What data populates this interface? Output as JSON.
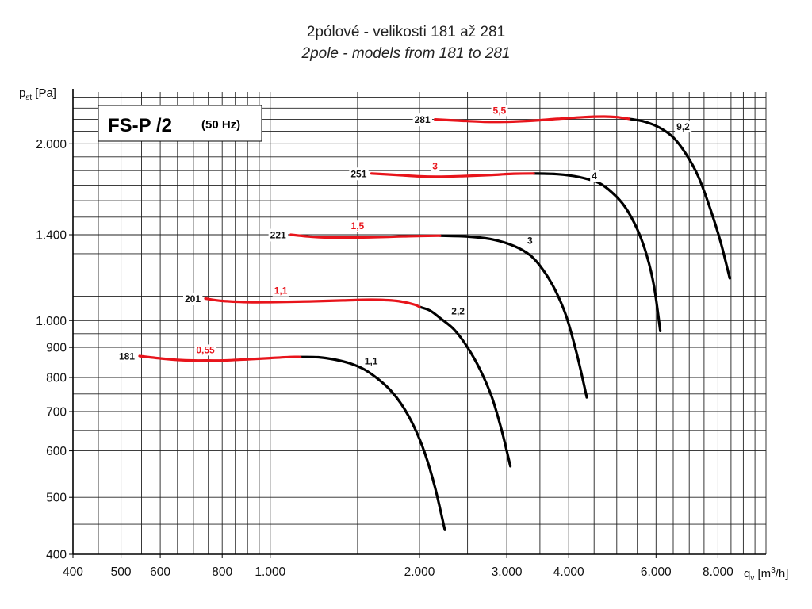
{
  "title_line1": "2pólové - velikosti 181 až 281",
  "title_line2": "2pole - models from 181 to 281",
  "box": {
    "main": "FS-P /2",
    "sub": "(50 Hz)"
  },
  "colors": {
    "red": "#e8141b",
    "black": "#000000",
    "grid": "#222222"
  },
  "chart_data": {
    "type": "line",
    "x_scale": "log",
    "y_scale": "log",
    "xlabel": "qv [m3/h]",
    "ylabel": "pst [Pa]",
    "xlim": [
      400,
      10000
    ],
    "ylim": [
      400,
      2450
    ],
    "x_ticks": [
      {
        "v": 400,
        "label": "400"
      },
      {
        "v": 500,
        "label": "500"
      },
      {
        "v": 600,
        "label": "600"
      },
      {
        "v": 800,
        "label": "800"
      },
      {
        "v": 1000,
        "label": "1.000"
      },
      {
        "v": 2000,
        "label": "2.000"
      },
      {
        "v": 3000,
        "label": "3.000"
      },
      {
        "v": 4000,
        "label": "4.000"
      },
      {
        "v": 6000,
        "label": "6.000"
      },
      {
        "v": 8000,
        "label": "8.000"
      }
    ],
    "y_ticks": [
      {
        "v": 400,
        "label": "400"
      },
      {
        "v": 500,
        "label": "500"
      },
      {
        "v": 600,
        "label": "600"
      },
      {
        "v": 700,
        "label": "700"
      },
      {
        "v": 800,
        "label": "800"
      },
      {
        "v": 900,
        "label": "900"
      },
      {
        "v": 1000,
        "label": "1.000"
      },
      {
        "v": 1400,
        "label": "1.400"
      },
      {
        "v": 2000,
        "label": "2.000"
      }
    ],
    "x_gridlines": [
      450,
      500,
      550,
      600,
      650,
      700,
      750,
      800,
      850,
      900,
      950,
      1000,
      1500,
      2000,
      2500,
      3000,
      3500,
      4000,
      4500,
      5000,
      5500,
      6000,
      6500,
      7000,
      7500,
      8000,
      8500,
      9000,
      9500,
      10000
    ],
    "y_gridlines": [
      400,
      450,
      500,
      550,
      600,
      650,
      700,
      750,
      800,
      850,
      900,
      950,
      1000,
      1100,
      1200,
      1300,
      1400,
      1500,
      1600,
      1700,
      1800,
      1900,
      2000,
      2100,
      2200,
      2300,
      2400
    ],
    "series": [
      {
        "name": "181",
        "power": "0,55",
        "power_at": [
          740,
          865
        ],
        "power_label_at": [
          740,
          880
        ],
        "red": [
          [
            545,
            870
          ],
          [
            600,
            862
          ],
          [
            650,
            857
          ],
          [
            700,
            855
          ],
          [
            750,
            855
          ],
          [
            800,
            855
          ],
          [
            900,
            859
          ],
          [
            1000,
            863
          ],
          [
            1100,
            867
          ],
          [
            1150,
            867
          ]
        ],
        "black": [
          [
            1150,
            867
          ],
          [
            1250,
            866
          ],
          [
            1350,
            858
          ],
          [
            1450,
            845
          ],
          [
            1550,
            825
          ],
          [
            1650,
            795
          ],
          [
            1750,
            760
          ],
          [
            1850,
            715
          ],
          [
            1950,
            660
          ],
          [
            2050,
            595
          ],
          [
            2150,
            520
          ],
          [
            2250,
            440
          ]
        ],
        "end_label": "1,1",
        "end_label_at": [
          1550,
          842
        ]
      },
      {
        "name": "201",
        "power": "1,1",
        "power_at": [
          1050,
          1085
        ],
        "power_label_at": [
          1050,
          1110
        ],
        "red": [
          [
            740,
            1090
          ],
          [
            800,
            1080
          ],
          [
            900,
            1075
          ],
          [
            1000,
            1075
          ],
          [
            1200,
            1078
          ],
          [
            1400,
            1082
          ],
          [
            1600,
            1085
          ],
          [
            1800,
            1080
          ],
          [
            1950,
            1065
          ],
          [
            2000,
            1055
          ]
        ],
        "black": [
          [
            2000,
            1055
          ],
          [
            2100,
            1040
          ],
          [
            2200,
            1010
          ],
          [
            2350,
            965
          ],
          [
            2500,
            900
          ],
          [
            2650,
            825
          ],
          [
            2800,
            740
          ],
          [
            2930,
            650
          ],
          [
            3050,
            565
          ]
        ],
        "end_label": "2,2",
        "end_label_at": [
          2320,
          1025
        ]
      },
      {
        "name": "221",
        "power": "1,5",
        "power_at": [
          1500,
          1400
        ],
        "power_label_at": [
          1500,
          1430
        ],
        "red": [
          [
            1100,
            1400
          ],
          [
            1200,
            1390
          ],
          [
            1300,
            1385
          ],
          [
            1500,
            1385
          ],
          [
            1700,
            1388
          ],
          [
            1900,
            1392
          ],
          [
            2200,
            1395
          ]
        ],
        "black": [
          [
            2200,
            1395
          ],
          [
            2500,
            1390
          ],
          [
            2800,
            1375
          ],
          [
            3100,
            1340
          ],
          [
            3350,
            1290
          ],
          [
            3550,
            1220
          ],
          [
            3750,
            1130
          ],
          [
            3950,
            1020
          ],
          [
            4150,
            880
          ],
          [
            4350,
            740
          ]
        ],
        "end_label": "3",
        "end_label_at": [
          3300,
          1350
        ]
      },
      {
        "name": "251",
        "power": "3",
        "power_at": [
          2150,
          1790
        ],
        "power_label_at": [
          2150,
          1810
        ],
        "red": [
          [
            1600,
            1780
          ],
          [
            1800,
            1770
          ],
          [
            2000,
            1760
          ],
          [
            2200,
            1758
          ],
          [
            2500,
            1763
          ],
          [
            2800,
            1770
          ],
          [
            3100,
            1778
          ],
          [
            3400,
            1780
          ]
        ],
        "black": [
          [
            3400,
            1780
          ],
          [
            3800,
            1775
          ],
          [
            4200,
            1755
          ],
          [
            4600,
            1715
          ],
          [
            4900,
            1650
          ],
          [
            5200,
            1560
          ],
          [
            5500,
            1430
          ],
          [
            5750,
            1290
          ],
          [
            5950,
            1140
          ],
          [
            6120,
            960
          ]
        ],
        "end_label": "4",
        "end_label_at": [
          4450,
          1740
        ]
      },
      {
        "name": "281",
        "power": "5,5",
        "power_at": [
          2900,
          2210
        ],
        "power_label_at": [
          2900,
          2250
        ],
        "red": [
          [
            2150,
            2200
          ],
          [
            2400,
            2190
          ],
          [
            2700,
            2180
          ],
          [
            3000,
            2180
          ],
          [
            3400,
            2190
          ],
          [
            3800,
            2205
          ],
          [
            4300,
            2220
          ],
          [
            4700,
            2225
          ],
          [
            5000,
            2220
          ],
          [
            5300,
            2205
          ]
        ],
        "black": [
          [
            5300,
            2205
          ],
          [
            5700,
            2180
          ],
          [
            6100,
            2130
          ],
          [
            6500,
            2050
          ],
          [
            6900,
            1920
          ],
          [
            7300,
            1760
          ],
          [
            7700,
            1560
          ],
          [
            8100,
            1360
          ],
          [
            8450,
            1180
          ]
        ],
        "end_label": "9,2",
        "end_label_at": [
          6600,
          2110
        ]
      }
    ]
  }
}
